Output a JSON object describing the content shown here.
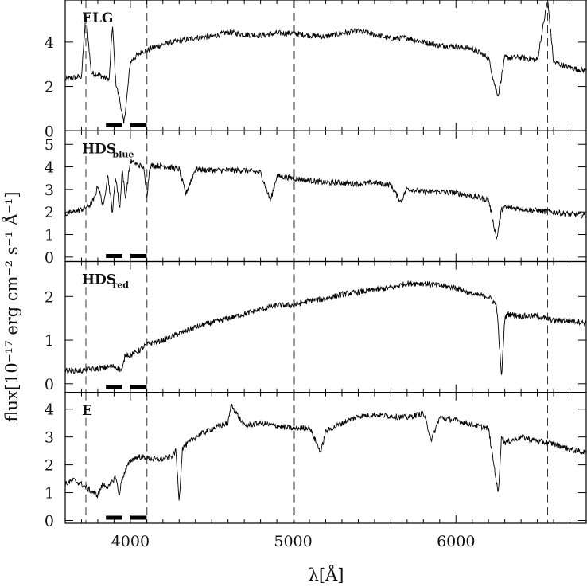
{
  "chart_data": {
    "type": "line",
    "xlabel": "λ[Å]",
    "ylabel": "flux[10⁻¹⁷ erg cm⁻² s⁻¹ Å⁻¹]",
    "xlim": [
      3600,
      6800
    ],
    "x_ticks": [
      "4000",
      "5000",
      "6000"
    ],
    "x_tick_values": [
      4000,
      5000,
      6000
    ],
    "vertical_dashed_lines": [
      3727,
      4102,
      5007,
      6563
    ],
    "index_bands": [
      [
        3850,
        3950
      ],
      [
        4000,
        4100
      ]
    ],
    "panels": [
      {
        "label": "ELG",
        "label_sub": "",
        "ylim": [
          0,
          5.9
        ],
        "y_ticks": [
          "0",
          "2",
          "4"
        ],
        "y_tick_values": [
          0,
          2,
          4
        ],
        "x": [
          3600,
          3650,
          3700,
          3727,
          3760,
          3800,
          3840,
          3870,
          3890,
          3910,
          3940,
          3960,
          3980,
          4000,
          4040,
          4080,
          4100,
          4120,
          4200,
          4300,
          4400,
          4500,
          4600,
          4700,
          4800,
          4900,
          5000,
          5100,
          5200,
          5300,
          5400,
          5500,
          5600,
          5700,
          5800,
          5900,
          6000,
          6100,
          6200,
          6240,
          6260,
          6300,
          6400,
          6500,
          6563,
          6600,
          6700,
          6800
        ],
        "y": [
          2.3,
          2.4,
          2.45,
          5.3,
          2.6,
          2.55,
          2.4,
          2.3,
          4.8,
          2.2,
          1.2,
          0.3,
          1.6,
          3.1,
          3.4,
          3.6,
          3.6,
          3.7,
          3.9,
          4.05,
          4.2,
          4.25,
          4.45,
          4.35,
          4.3,
          4.4,
          4.4,
          4.3,
          4.25,
          4.4,
          4.5,
          4.35,
          4.15,
          4.2,
          4.0,
          3.85,
          3.8,
          3.7,
          3.3,
          2.0,
          1.6,
          3.3,
          3.3,
          3.2,
          5.9,
          3.1,
          2.85,
          2.7
        ]
      },
      {
        "label": "HDS",
        "label_sub": "blue",
        "ylim": [
          -0.2,
          5.6
        ],
        "y_ticks": [
          "0",
          "1",
          "2",
          "3",
          "4",
          "5"
        ],
        "y_tick_values": [
          0,
          1,
          2,
          3,
          4,
          5
        ],
        "x": [
          3600,
          3650,
          3700,
          3750,
          3780,
          3800,
          3835,
          3860,
          3890,
          3910,
          3935,
          3950,
          3970,
          4000,
          4040,
          4080,
          4102,
          4120,
          4200,
          4300,
          4340,
          4400,
          4500,
          4600,
          4700,
          4800,
          4861,
          4900,
          5000,
          5100,
          5200,
          5300,
          5400,
          5500,
          5600,
          5660,
          5700,
          5800,
          5900,
          6000,
          6100,
          6200,
          6250,
          6280,
          6300,
          6400,
          6500,
          6600,
          6700,
          6800
        ],
        "y": [
          1.9,
          2.0,
          2.1,
          2.3,
          2.6,
          3.2,
          2.2,
          3.7,
          2.0,
          3.6,
          2.1,
          3.9,
          2.6,
          4.25,
          4.1,
          4.0,
          2.7,
          4.05,
          4.05,
          3.9,
          2.8,
          3.9,
          3.85,
          3.85,
          3.85,
          3.75,
          2.5,
          3.6,
          3.5,
          3.4,
          3.3,
          3.3,
          3.25,
          3.3,
          3.2,
          2.45,
          3.05,
          2.9,
          2.9,
          2.85,
          2.7,
          2.55,
          0.8,
          2.1,
          2.2,
          2.15,
          2.05,
          2.0,
          1.9,
          1.85
        ]
      },
      {
        "label": "HDS",
        "label_sub": "red",
        "ylim": [
          -0.2,
          2.8
        ],
        "y_ticks": [
          "0",
          "1",
          "2"
        ],
        "y_tick_values": [
          0,
          1,
          2
        ],
        "x": [
          3600,
          3700,
          3800,
          3900,
          3950,
          3970,
          4000,
          4050,
          4100,
          4200,
          4300,
          4400,
          4500,
          4600,
          4700,
          4800,
          4900,
          5000,
          5100,
          5200,
          5300,
          5400,
          5500,
          5600,
          5700,
          5800,
          5900,
          6000,
          6100,
          6200,
          6250,
          6280,
          6300,
          6320,
          6400,
          6500,
          6600,
          6700,
          6800
        ],
        "y": [
          0.3,
          0.3,
          0.35,
          0.4,
          0.3,
          0.7,
          0.65,
          0.75,
          0.9,
          1.0,
          1.15,
          1.3,
          1.4,
          1.5,
          1.6,
          1.7,
          1.8,
          1.8,
          1.9,
          1.95,
          2.05,
          2.1,
          2.15,
          2.2,
          2.3,
          2.3,
          2.25,
          2.2,
          2.05,
          2.0,
          1.8,
          0.15,
          1.5,
          1.6,
          1.55,
          1.55,
          1.45,
          1.45,
          1.4
        ]
      },
      {
        "label": "E",
        "label_sub": "",
        "ylim": [
          -0.1,
          4.6
        ],
        "y_ticks": [
          "0",
          "1",
          "2",
          "3",
          "4"
        ],
        "y_tick_values": [
          0,
          1,
          2,
          3,
          4
        ],
        "x": [
          3600,
          3650,
          3700,
          3750,
          3800,
          3830,
          3870,
          3910,
          3930,
          3950,
          3970,
          4000,
          4050,
          4100,
          4150,
          4200,
          4250,
          4280,
          4300,
          4320,
          4400,
          4500,
          4600,
          4620,
          4700,
          4800,
          5000,
          5100,
          5170,
          5200,
          5300,
          5400,
          5500,
          5600,
          5700,
          5800,
          5850,
          5900,
          6000,
          6100,
          6200,
          6260,
          6280,
          6300,
          6400,
          6500,
          6600,
          6700,
          6800
        ],
        "y": [
          1.3,
          1.45,
          1.3,
          1.1,
          0.9,
          1.3,
          1.2,
          1.6,
          0.9,
          1.5,
          1.8,
          2.15,
          2.3,
          2.25,
          2.2,
          2.2,
          2.3,
          2.5,
          0.7,
          2.6,
          3.0,
          3.3,
          3.5,
          4.15,
          3.4,
          3.5,
          3.3,
          3.35,
          2.45,
          3.2,
          3.5,
          3.75,
          3.8,
          3.75,
          3.7,
          3.85,
          2.9,
          3.7,
          3.6,
          3.45,
          3.3,
          0.95,
          3.05,
          2.8,
          3.0,
          2.85,
          2.75,
          2.55,
          2.45
        ]
      }
    ]
  }
}
